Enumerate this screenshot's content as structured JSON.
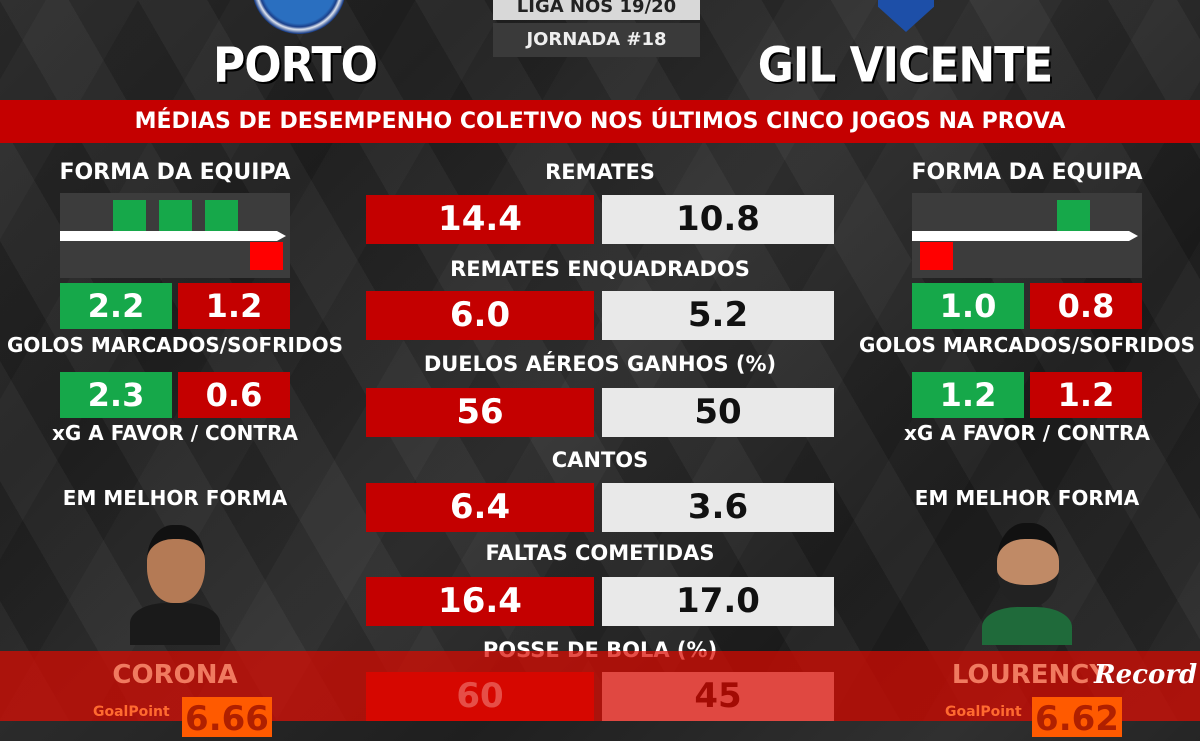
{
  "header": {
    "competition": "LIGA NOS 19/20",
    "round": "JORNADA #18"
  },
  "home": {
    "name": "PORTO",
    "form": [
      "D",
      "W",
      "W",
      "W",
      "L"
    ],
    "goals_scored": "2.2",
    "goals_conceded": "1.2",
    "xg_for": "2.3",
    "xg_against": "0.6",
    "best_player": "CORONA",
    "best_player_rating": "6.66"
  },
  "away": {
    "name": "GIL VICENTE",
    "form": [
      "L",
      "D",
      "D",
      "W",
      "D"
    ],
    "goals_scored": "1.0",
    "goals_conceded": "0.8",
    "xg_for": "1.2",
    "xg_against": "1.2",
    "best_player": "LOURENCY",
    "best_player_rating": "6.62"
  },
  "banner": "MÉDIAS DE DESEMPENHO COLETIVO NOS ÚLTIMOS CINCO JOGOS NA PROVA",
  "labels": {
    "form": "FORMA DA EQUIPA",
    "goals": "GOLOS MARCADOS/SOFRIDOS",
    "xg": "xG A FAVOR / CONTRA",
    "best": "EM MELHOR FORMA",
    "goalpoint": "GoalPoint"
  },
  "stats": [
    {
      "label": "REMATES",
      "home": "14.4",
      "away": "10.8"
    },
    {
      "label": "REMATES ENQUADRADOS",
      "home": "6.0",
      "away": "5.2"
    },
    {
      "label": "DUELOS AÉREOS GANHOS (%)",
      "home": "56",
      "away": "50"
    },
    {
      "label": "CANTOS",
      "home": "6.4",
      "away": "3.6"
    },
    {
      "label": "FALTAS COMETIDAS",
      "home": "16.4",
      "away": "17.0"
    },
    {
      "label": "POSSE DE BOLA (%)",
      "home": "60",
      "away": "45"
    }
  ],
  "brand": "Record",
  "colors": {
    "red": "#c40000",
    "green": "#16a84a",
    "loss": "#ff0000",
    "rating": "#ff5a00"
  }
}
